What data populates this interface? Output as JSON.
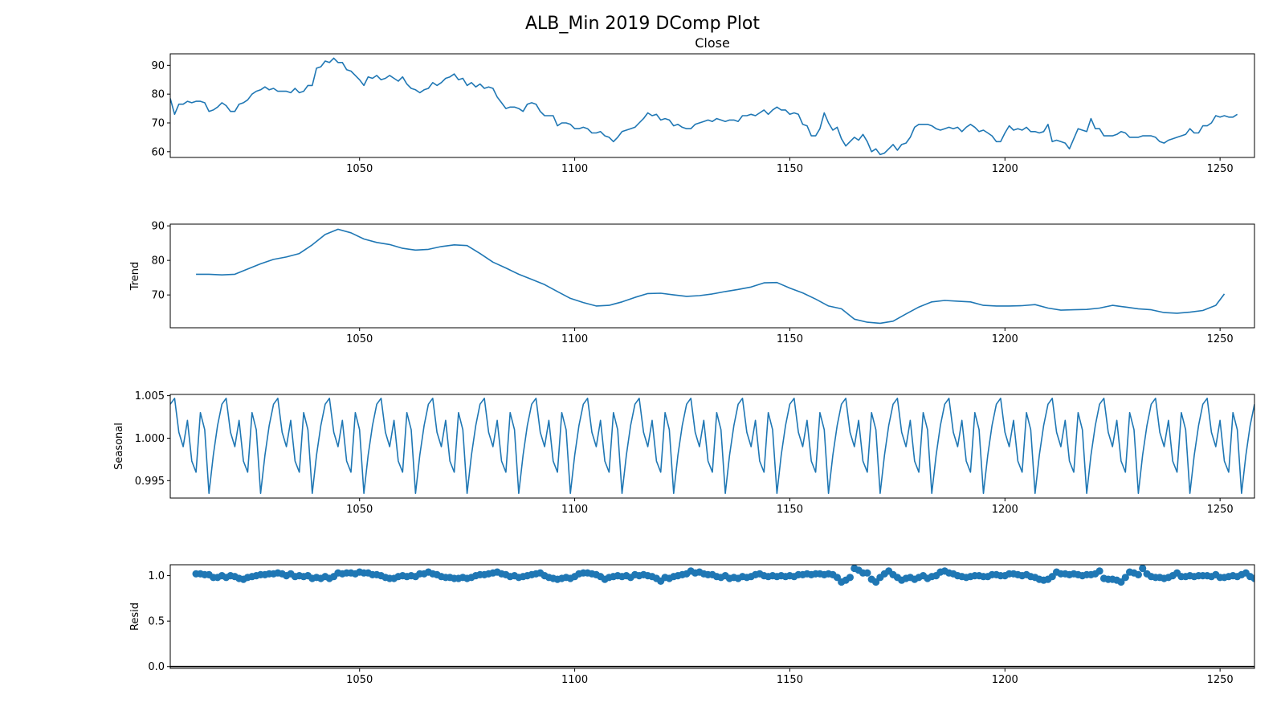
{
  "figure": {
    "title": "ALB_Min 2019 DComp Plot"
  },
  "chart_data": [
    {
      "type": "line",
      "title": "Close",
      "ylabel": "",
      "xlim": [
        1006,
        1258
      ],
      "ylim": [
        58,
        94
      ],
      "xticks": [
        "1050",
        "1100",
        "1150",
        "1200",
        "1250"
      ],
      "yticks": [
        "60",
        "70",
        "80",
        "90"
      ],
      "x_start": 1006,
      "values": [
        78.5,
        73.0,
        76.5,
        76.5,
        77.5,
        77.0,
        77.5,
        77.5,
        77.0,
        74.0,
        74.5,
        75.5,
        77.0,
        76.0,
        74.0,
        74.0,
        76.5,
        77.0,
        78.0,
        80.0,
        81.0,
        81.5,
        82.5,
        81.5,
        82.0,
        81.0,
        81.0,
        81.0,
        80.5,
        82.0,
        80.5,
        81.0,
        83.0,
        83.0,
        89.0,
        89.5,
        91.5,
        91.0,
        92.5,
        91.0,
        91.0,
        88.5,
        88.0,
        86.5,
        85.0,
        83.0,
        86.0,
        85.5,
        86.5,
        85.0,
        85.5,
        86.5,
        85.5,
        84.5,
        86.0,
        83.5,
        82.0,
        81.5,
        80.5,
        81.5,
        82.0,
        84.0,
        83.0,
        84.0,
        85.5,
        86.0,
        87.0,
        85.0,
        85.5,
        83.0,
        84.0,
        82.5,
        83.5,
        82.0,
        82.5,
        82.0,
        79.0,
        77.0,
        75.0,
        75.5,
        75.5,
        75.0,
        74.0,
        76.5,
        77.0,
        76.5,
        74.0,
        72.5,
        72.5,
        72.5,
        69.0,
        70.0,
        70.0,
        69.5,
        68.0,
        68.0,
        68.5,
        68.0,
        66.5,
        66.5,
        67.0,
        65.5,
        65.0,
        63.5,
        65.0,
        67.0,
        67.5,
        68.0,
        68.5,
        70.0,
        71.5,
        73.5,
        72.5,
        73.0,
        71.0,
        71.5,
        71.0,
        69.0,
        69.5,
        68.5,
        68.0,
        68.0,
        69.5,
        70.0,
        70.5,
        71.0,
        70.5,
        71.5,
        71.0,
        70.5,
        71.0,
        71.0,
        70.5,
        72.5,
        72.5,
        73.0,
        72.5,
        73.5,
        74.5,
        73.0,
        74.5,
        75.5,
        74.5,
        74.5,
        73.0,
        73.5,
        73.0,
        69.5,
        69.0,
        65.5,
        65.5,
        68.0,
        73.5,
        70.0,
        67.5,
        68.5,
        64.5,
        62.0,
        63.5,
        65.0,
        64.0,
        66.0,
        63.5,
        60.0,
        61.0,
        59.0,
        59.5,
        61.0,
        62.5,
        60.5,
        62.5,
        63.0,
        65.0,
        68.5,
        69.5,
        69.5,
        69.5,
        69.0,
        68.0,
        67.5,
        68.0,
        68.5,
        68.0,
        68.5,
        67.0,
        68.5,
        69.5,
        68.5,
        67.0,
        67.5,
        66.5,
        65.5,
        63.5,
        63.5,
        66.5,
        69.0,
        67.5,
        68.0,
        67.5,
        68.5,
        67.0,
        67.0,
        66.5,
        67.0,
        69.5,
        63.5,
        64.0,
        63.5,
        63.0,
        61.0,
        64.5,
        68.0,
        67.5,
        67.0,
        71.5,
        68.0,
        68.0,
        65.5,
        65.5,
        65.5,
        66.0,
        67.0,
        66.5,
        65.0,
        65.0,
        65.0,
        65.5,
        65.5,
        65.5,
        65.0,
        63.5,
        63.0,
        64.0,
        64.5,
        65.0,
        65.5,
        66.0,
        68.0,
        66.5,
        66.5,
        69.0,
        69.0,
        70.0,
        72.5,
        72.0,
        72.5,
        72.0,
        72.0,
        73.0
      ]
    },
    {
      "type": "line",
      "title": "",
      "ylabel": "Trend",
      "xlim": [
        1006,
        1258
      ],
      "ylim": [
        60.5,
        90.5
      ],
      "xticks": [
        "1050",
        "1100",
        "1150",
        "1200",
        "1250"
      ],
      "yticks": [
        "70",
        "80",
        "90"
      ],
      "x": [
        1012,
        1015,
        1018,
        1021,
        1024,
        1027,
        1030,
        1033,
        1036,
        1039,
        1042,
        1045,
        1048,
        1051,
        1054,
        1057,
        1060,
        1063,
        1066,
        1069,
        1072,
        1075,
        1078,
        1081,
        1084,
        1087,
        1090,
        1093,
        1096,
        1099,
        1102,
        1105,
        1108,
        1111,
        1114,
        1117,
        1120,
        1123,
        1126,
        1129,
        1132,
        1135,
        1138,
        1141,
        1144,
        1147,
        1150,
        1153,
        1156,
        1159,
        1162,
        1165,
        1168,
        1171,
        1174,
        1177,
        1180,
        1183,
        1186,
        1189,
        1192,
        1195,
        1198,
        1201,
        1204,
        1207,
        1210,
        1213,
        1216,
        1219,
        1222,
        1225,
        1228,
        1231,
        1234,
        1237,
        1240,
        1243,
        1246,
        1249,
        1251
      ],
      "values": [
        76.0,
        76.0,
        75.8,
        76.0,
        77.5,
        79.0,
        80.3,
        81.0,
        82.0,
        84.5,
        87.5,
        89.0,
        88.0,
        86.2,
        85.2,
        84.6,
        83.5,
        83.0,
        83.2,
        84.0,
        84.5,
        84.3,
        82.0,
        79.5,
        77.8,
        76.0,
        74.5,
        73.0,
        71.0,
        69.0,
        67.8,
        66.8,
        67.0,
        68.0,
        69.3,
        70.4,
        70.5,
        70.0,
        69.6,
        69.8,
        70.3,
        71.0,
        71.6,
        72.3,
        73.5,
        73.6,
        72.0,
        70.6,
        68.8,
        66.8,
        66.0,
        63.0,
        62.1,
        61.8,
        62.4,
        64.5,
        66.5,
        68.0,
        68.4,
        68.2,
        68.0,
        67.0,
        66.8,
        66.8,
        66.9,
        67.2,
        66.2,
        65.6,
        65.7,
        65.8,
        66.2,
        67.0,
        66.5,
        66.0,
        65.7,
        64.9,
        64.7,
        65.0,
        65.5,
        67.0,
        70.3
      ]
    },
    {
      "type": "line",
      "title": "",
      "ylabel": "Seasonal",
      "xlim": [
        1006,
        1258
      ],
      "ylim": [
        0.99295,
        1.00515
      ],
      "xticks": [
        "1050",
        "1100",
        "1150",
        "1200",
        "1250"
      ],
      "yticks": [
        "0.995",
        "1.000",
        "1.005"
      ],
      "x_start": 1006,
      "period": 12,
      "pattern": [
        1.004,
        1.0047,
        1.0007,
        0.999,
        1.0021,
        0.9973,
        0.996,
        1.003,
        1.001,
        0.9935,
        0.998,
        1.0015
      ],
      "values": []
    },
    {
      "type": "scatter",
      "title": "",
      "ylabel": "Resid",
      "xlim": [
        1006,
        1258
      ],
      "ylim": [
        -0.02,
        1.12
      ],
      "xticks": [
        "1050",
        "1100",
        "1150",
        "1200",
        "1250"
      ],
      "yticks": [
        "0.0",
        "0.5",
        "1.0"
      ],
      "baseline": 0.0,
      "x_start": 1012,
      "values": [
        1.02,
        1.02,
        1.01,
        1.01,
        0.98,
        0.98,
        1.0,
        0.98,
        1.0,
        0.99,
        0.97,
        0.96,
        0.98,
        0.99,
        1.0,
        1.01,
        1.01,
        1.02,
        1.02,
        1.03,
        1.02,
        1.0,
        1.02,
        0.99,
        1.0,
        0.99,
        1.0,
        0.97,
        0.98,
        0.97,
        0.99,
        0.97,
        0.99,
        1.03,
        1.02,
        1.03,
        1.03,
        1.02,
        1.04,
        1.03,
        1.03,
        1.01,
        1.01,
        1.0,
        0.98,
        0.97,
        0.97,
        0.99,
        1.0,
        0.99,
        1.0,
        0.99,
        1.02,
        1.02,
        1.04,
        1.02,
        1.01,
        0.99,
        0.98,
        0.98,
        0.97,
        0.97,
        0.98,
        0.97,
        0.98,
        1.0,
        1.01,
        1.01,
        1.02,
        1.03,
        1.04,
        1.02,
        1.01,
        0.99,
        1.0,
        0.98,
        0.99,
        1.0,
        1.01,
        1.02,
        1.03,
        1.0,
        0.98,
        0.97,
        0.96,
        0.97,
        0.98,
        0.97,
        0.99,
        1.02,
        1.03,
        1.03,
        1.02,
        1.01,
        0.99,
        0.96,
        0.98,
        0.99,
        1.0,
        0.99,
        1.0,
        0.98,
        1.01,
        1.0,
        1.01,
        1.0,
        0.99,
        0.97,
        0.94,
        0.98,
        0.97,
        0.99,
        1.0,
        1.01,
        1.02,
        1.05,
        1.03,
        1.04,
        1.02,
        1.01,
        1.01,
        0.99,
        0.98,
        1.0,
        0.97,
        0.98,
        0.97,
        0.99,
        0.98,
        0.99,
        1.01,
        1.02,
        1.0,
        0.99,
        1.0,
        0.99,
        1.0,
        0.99,
        1.0,
        0.99,
        1.01,
        1.01,
        1.02,
        1.01,
        1.02,
        1.02,
        1.01,
        1.02,
        1.01,
        0.98,
        0.93,
        0.95,
        0.98,
        1.08,
        1.06,
        1.03,
        1.03,
        0.96,
        0.93,
        0.98,
        1.02,
        1.05,
        1.01,
        0.98,
        0.95,
        0.97,
        0.98,
        0.96,
        0.98,
        1.0,
        0.97,
        0.99,
        1.0,
        1.04,
        1.05,
        1.03,
        1.02,
        1.0,
        0.99,
        0.98,
        0.99,
        1.0,
        1.0,
        0.99,
        0.99,
        1.01,
        1.01,
        1.0,
        1.0,
        1.02,
        1.02,
        1.01,
        1.0,
        1.01,
        0.99,
        0.98,
        0.96,
        0.95,
        0.96,
        0.99,
        1.04,
        1.02,
        1.02,
        1.01,
        1.02,
        1.01,
        1.0,
        1.01,
        1.01,
        1.02,
        1.05,
        0.97,
        0.96,
        0.96,
        0.95,
        0.93,
        0.98,
        1.04,
        1.03,
        1.01,
        1.08,
        1.02,
        0.99,
        0.98,
        0.98,
        0.97,
        0.98,
        1.0,
        1.03,
        0.99,
        0.99,
        1.0,
        0.99,
        1.0,
        1.0,
        1.0,
        0.99,
        1.01,
        0.98,
        0.98,
        0.99,
        1.0,
        0.99,
        1.01,
        1.03,
        0.99,
        0.97,
        1.0,
        0.99,
        1.0,
        1.0
      ]
    }
  ]
}
